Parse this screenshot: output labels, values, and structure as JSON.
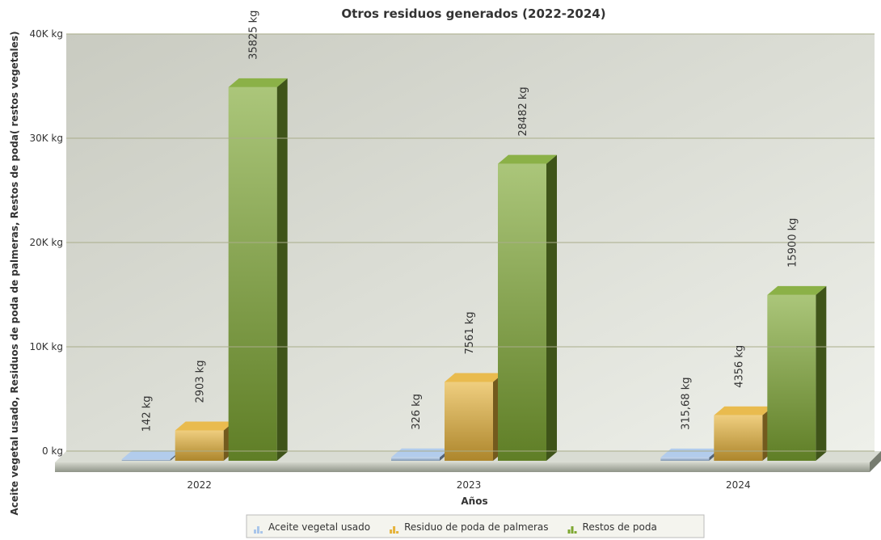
{
  "chart_data": {
    "type": "bar",
    "title": "Otros residuos generados (2022-2024)",
    "x_label": "Años",
    "y_label": "Aceite vegetal usado, Residuos de poda de palmeras, Restos de poda( restos vegetales)",
    "categories": [
      "2022",
      "2023",
      "2024"
    ],
    "series": [
      {
        "name": "Aceite vegetal usado",
        "color": "#a9c6ea",
        "values": [
          142,
          326,
          315.68
        ],
        "value_labels": [
          "142 kg",
          "326 kg",
          "315,68 kg"
        ]
      },
      {
        "name": "Residuo de poda de palmeras",
        "color": "#e6b33a",
        "values": [
          2903,
          7561,
          4356
        ],
        "value_labels": [
          "2903 kg",
          "7561 kg",
          "4356 kg"
        ]
      },
      {
        "name": "Restos de poda",
        "color": "#7ea832",
        "values": [
          35825,
          28482,
          15900
        ],
        "value_labels": [
          "35825 kg",
          "28482 kg",
          "15900 kg"
        ]
      }
    ],
    "ylim": [
      0,
      40000
    ],
    "yticks": [
      {
        "value": 0,
        "label": "0 kg"
      },
      {
        "value": 10000,
        "label": "10K kg"
      },
      {
        "value": 20000,
        "label": "20K kg"
      },
      {
        "value": 30000,
        "label": "30K kg"
      },
      {
        "value": 40000,
        "label": "40K kg"
      }
    ],
    "grid": true,
    "legend": "bottom"
  }
}
